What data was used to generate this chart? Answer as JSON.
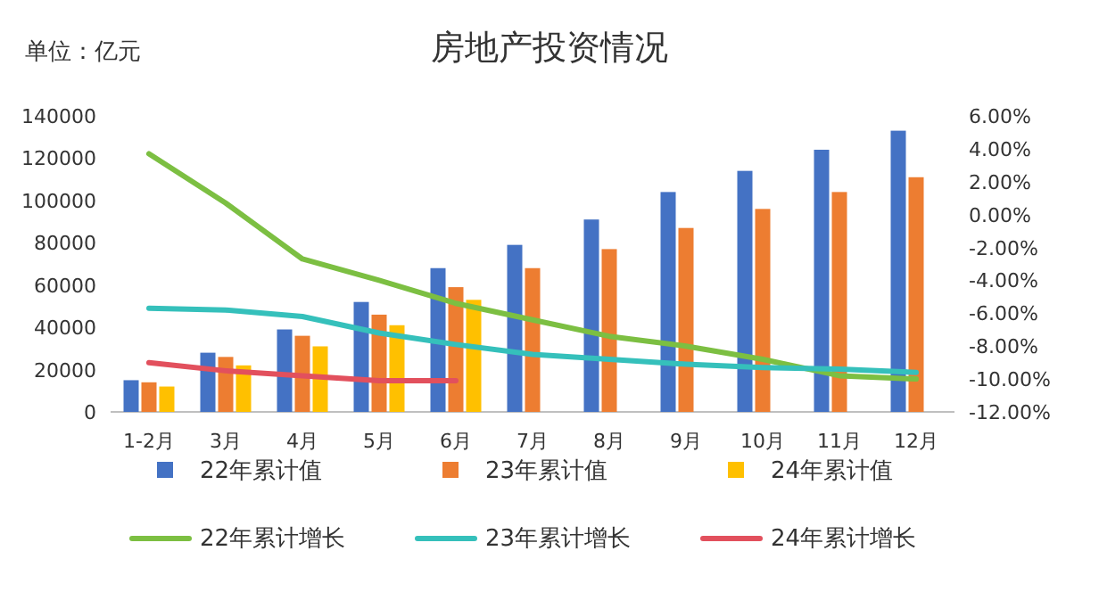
{
  "chart_data": {
    "type": "bar",
    "title": "房地产投资情况",
    "ylabel": "单位：亿元",
    "categories": [
      "1-2月",
      "3月",
      "4月",
      "5月",
      "6月",
      "7月",
      "8月",
      "9月",
      "10月",
      "11月",
      "12月"
    ],
    "ylim": [
      0,
      140000
    ],
    "yticks": [
      0,
      20000,
      40000,
      60000,
      80000,
      100000,
      120000,
      140000
    ],
    "y2lim": [
      -12,
      6
    ],
    "y2ticks": [
      {
        "value": 6,
        "label": "6.00%"
      },
      {
        "value": 4,
        "label": "4.00%"
      },
      {
        "value": 2,
        "label": "2.00%"
      },
      {
        "value": 0,
        "label": "0.00%"
      },
      {
        "value": -2,
        "label": "-2.00%"
      },
      {
        "value": -4,
        "label": "-4.00%"
      },
      {
        "value": -6,
        "label": "-6.00%"
      },
      {
        "value": -8,
        "label": "-8.00%"
      },
      {
        "value": -10,
        "label": "-10.00%"
      },
      {
        "value": -12,
        "label": "-12.00%"
      }
    ],
    "legend": "bottom",
    "series": [
      {
        "name": "22年累计值",
        "color": "#4472c4",
        "values": [
          15000,
          28000,
          39000,
          52000,
          68000,
          79000,
          91000,
          104000,
          114000,
          124000,
          133000
        ]
      },
      {
        "name": "23年累计值",
        "color": "#ed7d31",
        "values": [
          14000,
          26000,
          36000,
          46000,
          59000,
          68000,
          77000,
          87000,
          96000,
          104000,
          111000
        ]
      },
      {
        "name": "24年累计值",
        "color": "#ffc000",
        "values": [
          12000,
          22000,
          31000,
          41000,
          53000,
          null,
          null,
          null,
          null,
          null,
          null
        ]
      },
      {
        "name": "22年累计增长",
        "type": "line",
        "axis": "y2",
        "color": "#7cbf42",
        "values": [
          3.7,
          0.7,
          -2.7,
          -4.0,
          -5.4,
          -6.4,
          -7.4,
          -8.0,
          -8.8,
          -9.8,
          -10.0
        ]
      },
      {
        "name": "23年累计增长",
        "type": "line",
        "axis": "y2",
        "color": "#35c0bb",
        "values": [
          -5.7,
          -5.8,
          -6.2,
          -7.2,
          -7.9,
          -8.5,
          -8.8,
          -9.1,
          -9.3,
          -9.4,
          -9.6
        ]
      },
      {
        "name": "24年累计增长",
        "type": "line",
        "axis": "y2",
        "color": "#e2505d",
        "values": [
          -9.0,
          -9.5,
          -9.8,
          -10.1,
          -10.1,
          null,
          null,
          null,
          null,
          null,
          null
        ]
      }
    ]
  }
}
